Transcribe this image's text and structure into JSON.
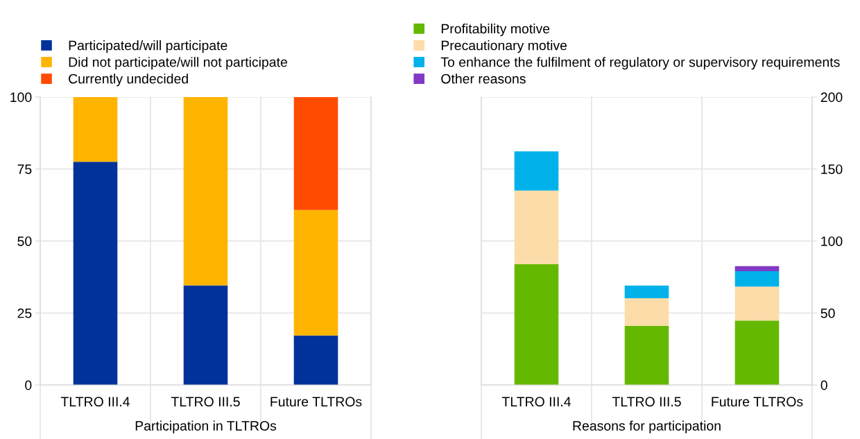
{
  "chart_data": [
    {
      "type": "bar",
      "stacked": true,
      "xlabel": "Participation in TLTROs",
      "categories": [
        "TLTRO III.4",
        "TLTRO III.5",
        "Future TLTROs"
      ],
      "ylim": [
        0,
        100
      ],
      "yticks": [
        0,
        25,
        50,
        75,
        100
      ],
      "grid": true,
      "legend": "top left",
      "series": [
        {
          "name": "Participated/will participate",
          "color": "#003299",
          "values": [
            77.5,
            34.6,
            17.2
          ]
        },
        {
          "name": "Did not participate/will not participate",
          "color": "#ffb400",
          "values": [
            22.5,
            65.4,
            43.6
          ]
        },
        {
          "name": "Currently undecided",
          "color": "#ff4b00",
          "values": [
            0,
            0,
            39.2
          ]
        }
      ]
    },
    {
      "type": "bar",
      "stacked": true,
      "xlabel": "Reasons for participation",
      "categories": [
        "TLTRO III.4",
        "TLTRO III.5",
        "Future TLTROs"
      ],
      "y2lim": [
        0,
        200
      ],
      "y2ticks": [
        0,
        50,
        100,
        150,
        200
      ],
      "grid": true,
      "legend": "top",
      "series": [
        {
          "name": "Profitability motive",
          "color": "#65b800",
          "axis": "y2",
          "values": [
            84.0,
            41.1,
            44.7
          ]
        },
        {
          "name": "Precautionary motive",
          "color": "#fcdca8",
          "axis": "y2",
          "values": [
            51.0,
            19.2,
            23.6
          ]
        },
        {
          "name": "To enhance the fulfilment of regulatory or supervisory requirements",
          "color": "#00b1ea",
          "axis": "y2",
          "values": [
            27.3,
            8.8,
            10.8
          ]
        },
        {
          "name": "Other reasons",
          "color": "#8139c6",
          "axis": "y2",
          "values": [
            0,
            0,
            3.5
          ]
        }
      ]
    }
  ]
}
